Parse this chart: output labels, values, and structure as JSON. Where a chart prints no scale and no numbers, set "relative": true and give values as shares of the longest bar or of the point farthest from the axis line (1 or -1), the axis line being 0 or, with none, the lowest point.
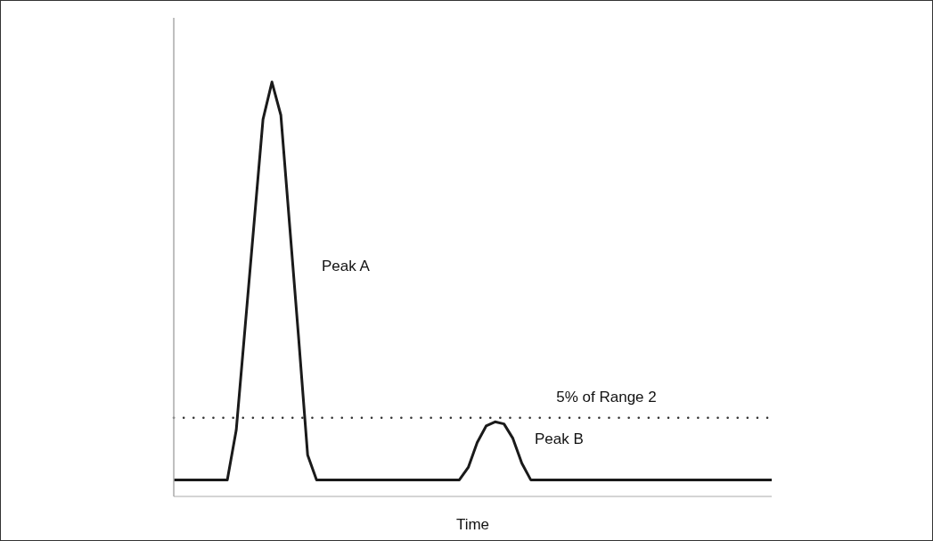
{
  "chart_data": {
    "type": "line",
    "relative": true,
    "xlabel": "Time",
    "categories": [
      null,
      null,
      null,
      null,
      null,
      null,
      null,
      null,
      null,
      null,
      null,
      null,
      null,
      null,
      null,
      null,
      null,
      null,
      null,
      null,
      null,
      null,
      null,
      null,
      null,
      null,
      null,
      null,
      null,
      null,
      null,
      null,
      null,
      null,
      null,
      null,
      null,
      null,
      null,
      null,
      null,
      null,
      null,
      null,
      null,
      null,
      null,
      null,
      null,
      null,
      null,
      null,
      null,
      null,
      null,
      null,
      null,
      null,
      null,
      null,
      null,
      null,
      null,
      null,
      null,
      null,
      null,
      null
    ],
    "series": [
      {
        "color": "#1a1a1a",
        "values": [
          0.04,
          0.04,
          0.04,
          0.04,
          0.04,
          0.04,
          0.04,
          0.16,
          0.41,
          0.66,
          0.91,
          1.0,
          0.92,
          0.65,
          0.38,
          0.1,
          0.04,
          0.04,
          0.04,
          0.04,
          0.04,
          0.04,
          0.04,
          0.04,
          0.04,
          0.04,
          0.04,
          0.04,
          0.04,
          0.04,
          0.04,
          0.04,
          0.04,
          0.07,
          0.13,
          0.17,
          0.18,
          0.175,
          0.14,
          0.08,
          0.04,
          0.04,
          0.04,
          0.04,
          0.04,
          0.04,
          0.04,
          0.04,
          0.04,
          0.04,
          0.04,
          0.04,
          0.04,
          0.04,
          0.04,
          0.04,
          0.04,
          0.04,
          0.04,
          0.04,
          0.04,
          0.04,
          0.04,
          0.04,
          0.04,
          0.04,
          0.04,
          0.04
        ]
      }
    ],
    "ref_lines": [
      {
        "axis": "y",
        "value": 0.19,
        "label": "5% of Range 2",
        "color": "#333333",
        "line_style": "dotted"
      }
    ],
    "annotations": [
      "Peak A",
      "Peak B"
    ],
    "marker": "none",
    "line_style": "solid",
    "grid": false,
    "legend": false
  }
}
